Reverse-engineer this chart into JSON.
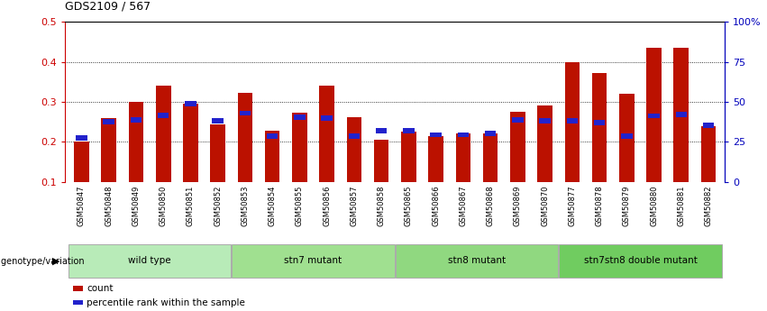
{
  "title": "GDS2109 / 567",
  "samples": [
    "GSM50847",
    "GSM50848",
    "GSM50849",
    "GSM50850",
    "GSM50851",
    "GSM50852",
    "GSM50853",
    "GSM50854",
    "GSM50855",
    "GSM50856",
    "GSM50857",
    "GSM50858",
    "GSM50865",
    "GSM50866",
    "GSM50867",
    "GSM50868",
    "GSM50869",
    "GSM50870",
    "GSM50877",
    "GSM50878",
    "GSM50879",
    "GSM50880",
    "GSM50881",
    "GSM50882"
  ],
  "count_values": [
    0.2,
    0.26,
    0.3,
    0.34,
    0.295,
    0.244,
    0.323,
    0.228,
    0.274,
    0.34,
    0.262,
    0.205,
    0.225,
    0.215,
    0.222,
    0.222,
    0.275,
    0.29,
    0.398,
    0.373,
    0.32,
    0.435,
    0.435,
    0.24
  ],
  "percentile_values": [
    0.21,
    0.25,
    0.255,
    0.267,
    0.295,
    0.252,
    0.272,
    0.215,
    0.262,
    0.26,
    0.215,
    0.228,
    0.228,
    0.218,
    0.218,
    0.222,
    0.255,
    0.252,
    0.252,
    0.248,
    0.215,
    0.265,
    0.268,
    0.242
  ],
  "groups": [
    {
      "label": "wild type",
      "start": 0,
      "end": 6,
      "color": "#b8ebb8"
    },
    {
      "label": "stn7 mutant",
      "start": 6,
      "end": 12,
      "color": "#a0e090"
    },
    {
      "label": "stn8 mutant",
      "start": 12,
      "end": 18,
      "color": "#90d880"
    },
    {
      "label": "stn7stn8 double mutant",
      "start": 18,
      "end": 24,
      "color": "#70cc60"
    }
  ],
  "bar_color": "#bb1100",
  "percentile_color": "#2222cc",
  "ylim_left": [
    0.1,
    0.5
  ],
  "ylim_right": [
    0,
    100
  ],
  "yticks_left": [
    0.1,
    0.2,
    0.3,
    0.4,
    0.5
  ],
  "ytick_labels_left": [
    "0.1",
    "0.2",
    "0.3",
    "0.4",
    "0.5"
  ],
  "yticks_right": [
    0,
    25,
    50,
    75,
    100
  ],
  "ytick_labels_right": [
    "0",
    "25",
    "50",
    "75",
    "100%"
  ],
  "grid_color": "#000000",
  "bg_color": "#ffffff",
  "axis_color_left": "#cc0000",
  "axis_color_right": "#0000bb",
  "xtick_bg": "#dddddd",
  "legend_count": "count",
  "legend_percentile": "percentile rank within the sample",
  "genotype_label": "genotype/variation"
}
